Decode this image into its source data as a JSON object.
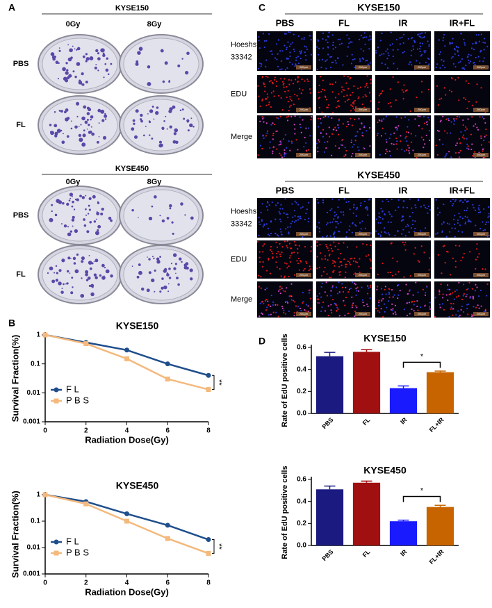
{
  "panel_labels": {
    "a": "A",
    "b": "B",
    "c": "C",
    "d": "D"
  },
  "panel_a": {
    "groups": [
      {
        "title": "KYSE150",
        "columns": [
          "0Gy",
          "8Gy"
        ],
        "rows": [
          "PBS",
          "FL"
        ]
      },
      {
        "title": "KYSE450",
        "columns": [
          "0Gy",
          "8Gy"
        ],
        "rows": [
          "PBS",
          "FL"
        ]
      }
    ]
  },
  "panel_c": {
    "scale_bar": "200μm",
    "groups": [
      {
        "title": "KYSE150",
        "columns": [
          "PBS",
          "FL",
          "IR",
          "IR+FL"
        ],
        "rows": [
          [
            "Hoeshst",
            "33342"
          ],
          [
            "EDU"
          ],
          [
            "Merge"
          ]
        ]
      },
      {
        "title": "KYSE450",
        "columns": [
          "PBS",
          "FL",
          "IR",
          "IR+FL"
        ],
        "rows": [
          [
            "Hoeshst",
            "33342"
          ],
          [
            "EDU"
          ],
          [
            "Merge"
          ]
        ]
      }
    ]
  },
  "chart_data": [
    {
      "type": "line",
      "title": "KYSE150",
      "x_label": "Radiation Dose(Gy)",
      "y_label": "Survival Fraction(%)",
      "x": [
        0,
        2,
        4,
        6,
        8
      ],
      "series": [
        {
          "name": "F L",
          "color": "#1f4e8c",
          "marker": "circle",
          "values": [
            1,
            0.55,
            0.3,
            0.1,
            0.04
          ]
        },
        {
          "name": "P B S",
          "color": "#f4b97c",
          "marker": "square",
          "values": [
            1,
            0.5,
            0.15,
            0.03,
            0.013
          ]
        }
      ],
      "xlim": [
        0,
        8
      ],
      "xticks": [
        0,
        2,
        4,
        6,
        8
      ],
      "ylim": [
        0.001,
        1
      ],
      "yticks": [
        0.001,
        0.01,
        0.1,
        1
      ],
      "log_y": true,
      "legend": "lower left",
      "annotations": [
        "**"
      ]
    },
    {
      "type": "line",
      "title": "KYSE450",
      "x_label": "Radiation Dose(Gy)",
      "y_label": "Survival Fraction(%)",
      "x": [
        0,
        2,
        4,
        6,
        8
      ],
      "series": [
        {
          "name": "F L",
          "color": "#1f4e8c",
          "marker": "circle",
          "values": [
            1,
            0.55,
            0.19,
            0.07,
            0.02
          ]
        },
        {
          "name": "P B S",
          "color": "#f4b97c",
          "marker": "square",
          "values": [
            1,
            0.45,
            0.1,
            0.022,
            0.006
          ]
        }
      ],
      "xlim": [
        0,
        8
      ],
      "xticks": [
        0,
        2,
        4,
        6,
        8
      ],
      "ylim": [
        0.001,
        1
      ],
      "yticks": [
        0.001,
        0.01,
        0.1,
        1
      ],
      "log_y": true,
      "legend": "lower left",
      "annotations": [
        "**"
      ]
    },
    {
      "type": "bar",
      "title": "KYSE150",
      "y_label": "Rate of EdU positive cells",
      "categories": [
        "PBS",
        "FL",
        "IR",
        "FL+IR"
      ],
      "values": [
        0.52,
        0.56,
        0.23,
        0.375
      ],
      "errors": [
        0.035,
        0.02,
        0.02,
        0.01
      ],
      "colors": [
        "#1a1a80",
        "#a01010",
        "#1a1aff",
        "#c86400"
      ],
      "ylim": [
        0,
        0.6
      ],
      "yticks": [
        {
          "value": 0,
          "label": "0.0"
        },
        0.2,
        0.4,
        0.6
      ],
      "annotations": [
        "*"
      ]
    },
    {
      "type": "bar",
      "title": "KYSE450",
      "y_label": "Rate of EdU positive cells",
      "categories": [
        "PBS",
        "FL",
        "IR",
        "FL+IR"
      ],
      "values": [
        0.51,
        0.57,
        0.22,
        0.35
      ],
      "errors": [
        0.03,
        0.015,
        0.01,
        0.015
      ],
      "colors": [
        "#1a1a80",
        "#a01010",
        "#1a1aff",
        "#c86400"
      ],
      "ylim": [
        0,
        0.6
      ],
      "yticks": [
        {
          "value": 0,
          "label": "0.0"
        },
        0.2,
        0.4,
        0.6
      ],
      "annotations": [
        "*"
      ]
    }
  ]
}
